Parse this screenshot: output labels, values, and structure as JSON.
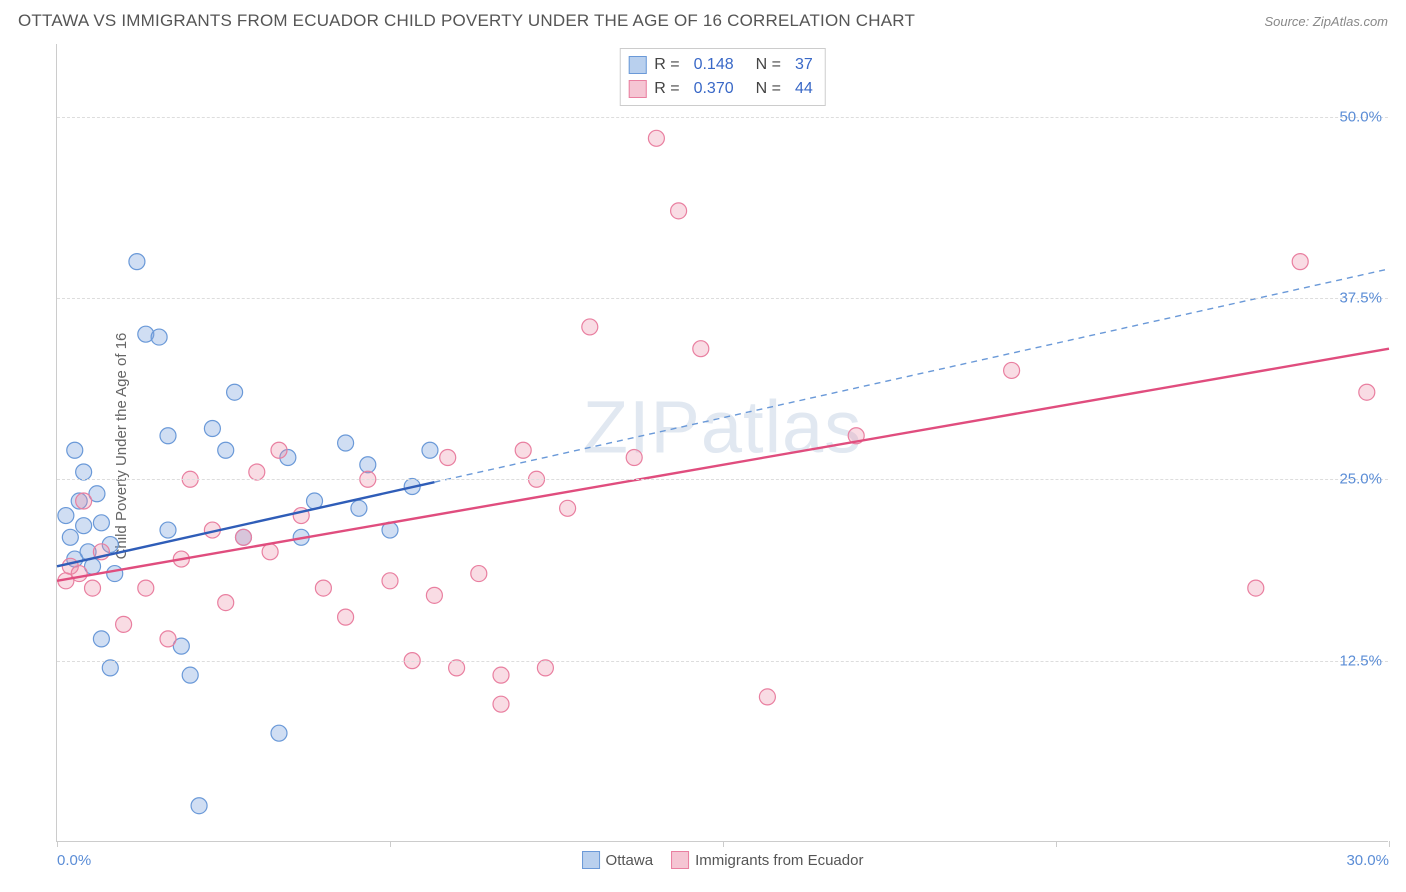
{
  "title": "OTTAWA VS IMMIGRANTS FROM ECUADOR CHILD POVERTY UNDER THE AGE OF 16 CORRELATION CHART",
  "source": "Source: ZipAtlas.com",
  "y_axis_label": "Child Poverty Under the Age of 16",
  "watermark": "ZIPatlas",
  "x_range": [
    0.0,
    30.0
  ],
  "y_range": [
    0.0,
    55.0
  ],
  "y_ticks": [
    {
      "value": 12.5,
      "label": "12.5%"
    },
    {
      "value": 25.0,
      "label": "25.0%"
    },
    {
      "value": 37.5,
      "label": "37.5%"
    },
    {
      "value": 50.0,
      "label": "50.0%"
    }
  ],
  "x_ticks": [
    {
      "value": 0.0,
      "label": "0.0%",
      "align": "left"
    },
    {
      "value": 7.5,
      "label": ""
    },
    {
      "value": 15.0,
      "label": ""
    },
    {
      "value": 22.5,
      "label": ""
    },
    {
      "value": 30.0,
      "label": "30.0%",
      "align": "right"
    }
  ],
  "grid_color": "#dddddd",
  "axis_color": "#cccccc",
  "tick_label_color": "#5b8dd6",
  "series": [
    {
      "name": "Ottawa",
      "color_fill": "rgba(120,160,220,0.35)",
      "color_stroke": "#6a99d8",
      "swatch_fill": "#b9d0ee",
      "swatch_border": "#6a99d8",
      "r_value": "0.148",
      "n_value": "37",
      "marker_radius": 8,
      "trend": {
        "x1": 0.0,
        "y1": 19.0,
        "x2": 8.5,
        "y2": 24.8,
        "color": "#2f5db8",
        "width": 2.4,
        "dash": "none"
      },
      "trend_ext": {
        "x1": 8.5,
        "y1": 24.8,
        "x2": 30.0,
        "y2": 39.5,
        "color": "#6a99d8",
        "width": 1.4,
        "dash": "6,5"
      },
      "points": [
        [
          0.2,
          22.5
        ],
        [
          0.3,
          21.0
        ],
        [
          0.4,
          19.5
        ],
        [
          0.5,
          23.5
        ],
        [
          0.6,
          21.8
        ],
        [
          0.7,
          20.0
        ],
        [
          0.8,
          19.0
        ],
        [
          0.4,
          27.0
        ],
        [
          0.6,
          25.5
        ],
        [
          0.9,
          24.0
        ],
        [
          1.0,
          22.0
        ],
        [
          1.2,
          20.5
        ],
        [
          1.3,
          18.5
        ],
        [
          1.0,
          14.0
        ],
        [
          1.2,
          12.0
        ],
        [
          1.8,
          40.0
        ],
        [
          2.0,
          35.0
        ],
        [
          2.3,
          34.8
        ],
        [
          2.5,
          28.0
        ],
        [
          2.5,
          21.5
        ],
        [
          2.8,
          13.5
        ],
        [
          3.0,
          11.5
        ],
        [
          3.2,
          2.5
        ],
        [
          3.5,
          28.5
        ],
        [
          3.8,
          27.0
        ],
        [
          4.0,
          31.0
        ],
        [
          4.2,
          21.0
        ],
        [
          5.0,
          7.5
        ],
        [
          5.2,
          26.5
        ],
        [
          5.5,
          21.0
        ],
        [
          5.8,
          23.5
        ],
        [
          6.5,
          27.5
        ],
        [
          6.8,
          23.0
        ],
        [
          7.0,
          26.0
        ],
        [
          7.5,
          21.5
        ],
        [
          8.0,
          24.5
        ],
        [
          8.4,
          27.0
        ]
      ]
    },
    {
      "name": "Immigrants from Ecuador",
      "color_fill": "rgba(235,140,165,0.3)",
      "color_stroke": "#e97fa0",
      "swatch_fill": "#f5c5d3",
      "swatch_border": "#e97fa0",
      "r_value": "0.370",
      "n_value": "44",
      "marker_radius": 8,
      "trend": {
        "x1": 0.0,
        "y1": 18.0,
        "x2": 30.0,
        "y2": 34.0,
        "color": "#e04d7e",
        "width": 2.4,
        "dash": "none"
      },
      "points": [
        [
          0.2,
          18.0
        ],
        [
          0.3,
          19.0
        ],
        [
          0.5,
          18.5
        ],
        [
          0.6,
          23.5
        ],
        [
          0.8,
          17.5
        ],
        [
          1.0,
          20.0
        ],
        [
          1.5,
          15.0
        ],
        [
          2.0,
          17.5
        ],
        [
          2.5,
          14.0
        ],
        [
          2.8,
          19.5
        ],
        [
          3.0,
          25.0
        ],
        [
          3.5,
          21.5
        ],
        [
          3.8,
          16.5
        ],
        [
          4.2,
          21.0
        ],
        [
          4.5,
          25.5
        ],
        [
          4.8,
          20.0
        ],
        [
          5.0,
          27.0
        ],
        [
          5.5,
          22.5
        ],
        [
          6.0,
          17.5
        ],
        [
          6.5,
          15.5
        ],
        [
          7.0,
          25.0
        ],
        [
          7.5,
          18.0
        ],
        [
          8.0,
          12.5
        ],
        [
          8.5,
          17.0
        ],
        [
          8.8,
          26.5
        ],
        [
          9.0,
          12.0
        ],
        [
          9.5,
          18.5
        ],
        [
          10.0,
          9.5
        ],
        [
          10.0,
          11.5
        ],
        [
          10.5,
          27.0
        ],
        [
          10.8,
          25.0
        ],
        [
          11.0,
          12.0
        ],
        [
          11.5,
          23.0
        ],
        [
          12.0,
          35.5
        ],
        [
          13.0,
          26.5
        ],
        [
          13.5,
          48.5
        ],
        [
          14.0,
          43.5
        ],
        [
          14.5,
          34.0
        ],
        [
          16.0,
          10.0
        ],
        [
          18.0,
          28.0
        ],
        [
          21.5,
          32.5
        ],
        [
          27.0,
          17.5
        ],
        [
          28.0,
          40.0
        ],
        [
          29.5,
          31.0
        ]
      ]
    }
  ],
  "bottom_legend": [
    {
      "label": "Ottawa",
      "swatch_fill": "#b9d0ee",
      "swatch_border": "#6a99d8"
    },
    {
      "label": "Immigrants from Ecuador",
      "swatch_fill": "#f5c5d3",
      "swatch_border": "#e97fa0"
    }
  ]
}
